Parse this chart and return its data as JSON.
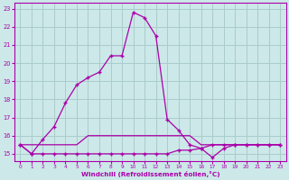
{
  "xlabel": "Windchill (Refroidissement éolien,°C)",
  "bg_color": "#cce8e8",
  "grid_color": "#aacccc",
  "line_color": "#aa00aa",
  "xlim": [
    -0.5,
    23.5
  ],
  "ylim": [
    14.6,
    23.3
  ],
  "yticks": [
    15,
    16,
    17,
    18,
    19,
    20,
    21,
    22,
    23
  ],
  "xticks": [
    0,
    1,
    2,
    3,
    4,
    5,
    6,
    7,
    8,
    9,
    10,
    11,
    12,
    13,
    14,
    15,
    16,
    17,
    18,
    19,
    20,
    21,
    22,
    23
  ],
  "line1_x": [
    0,
    1,
    2,
    3,
    4,
    5,
    6,
    7,
    8,
    9,
    10,
    11,
    12,
    13,
    14,
    15,
    16,
    17,
    18,
    19,
    20,
    21,
    22,
    23
  ],
  "line1_y": [
    15.5,
    15.0,
    15.8,
    16.5,
    17.8,
    18.8,
    19.2,
    19.5,
    20.4,
    20.4,
    22.8,
    22.5,
    21.5,
    16.9,
    16.3,
    15.5,
    15.3,
    15.5,
    15.5,
    15.5,
    15.5,
    15.5,
    15.5,
    15.5
  ],
  "line2_x": [
    0,
    1,
    2,
    3,
    4,
    5,
    6,
    7,
    8,
    9,
    10,
    11,
    12,
    13,
    14,
    15,
    16,
    17,
    18,
    19,
    20,
    21,
    22,
    23
  ],
  "line2_y": [
    15.5,
    15.0,
    15.0,
    15.0,
    15.0,
    15.0,
    15.0,
    15.0,
    15.0,
    15.0,
    15.0,
    15.0,
    15.0,
    15.0,
    15.2,
    15.2,
    15.3,
    14.8,
    15.3,
    15.5,
    15.5,
    15.5,
    15.5,
    15.5
  ],
  "line3_x": [
    0,
    1,
    2,
    3,
    4,
    5,
    6,
    7,
    8,
    9,
    10,
    11,
    12,
    13,
    14,
    15,
    16,
    17,
    18,
    19,
    20,
    21,
    22,
    23
  ],
  "line3_y": [
    15.5,
    15.5,
    15.5,
    15.5,
    15.5,
    15.5,
    16.0,
    16.0,
    16.0,
    16.0,
    16.0,
    16.0,
    16.0,
    16.0,
    16.0,
    16.0,
    15.5,
    15.5,
    15.5,
    15.5,
    15.5,
    15.5,
    15.5,
    15.5
  ]
}
